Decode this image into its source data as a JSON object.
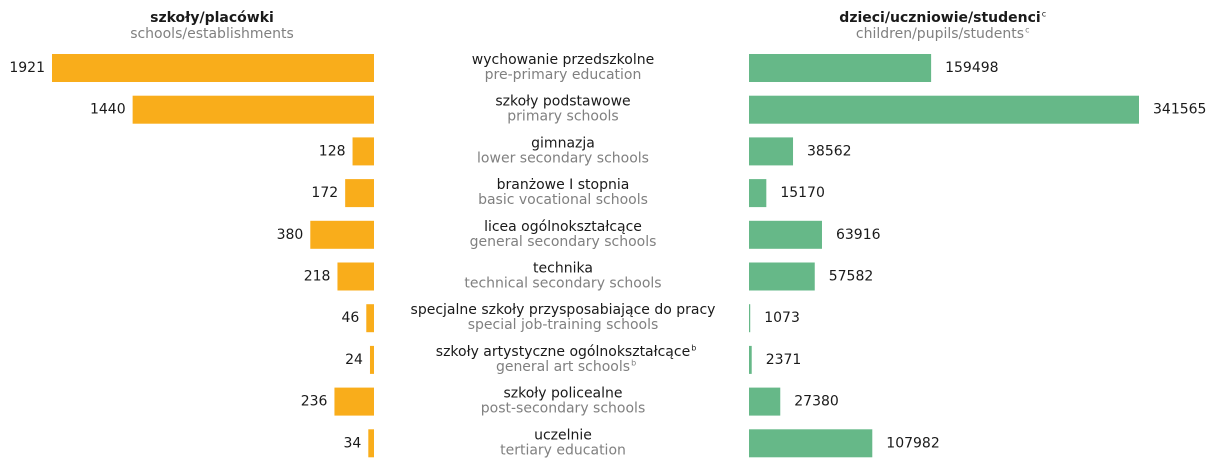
{
  "chart_data": {
    "type": "butterfly",
    "categories": [
      "wychowanie przedszkolne",
      "szkoły podstawowe",
      "gimnazja",
      "branżowe I stopnia",
      "licea ogólnokształcące",
      "technika",
      "specjalne szkoły przysposabiające do pracy",
      "szkoły artystyczne ogólnokształcące",
      "szkoły policealne",
      "uczelnie"
    ],
    "categories_en": [
      "pre-primary education",
      "primary schools",
      "lower secondary schools",
      "basic vocational schools",
      "general secondary schools",
      "technical secondary schools",
      "special job-training schools",
      "general art schools",
      "post-secondary schools",
      "tertiary education"
    ],
    "category_notes": [
      null,
      null,
      null,
      null,
      null,
      null,
      null,
      "b",
      null,
      null
    ],
    "series": [
      {
        "name": "szkoły/placówki",
        "subtitle": "schools/establishments",
        "color": "#f9ad1b",
        "values": [
          1921,
          1440,
          128,
          172,
          380,
          218,
          46,
          24,
          236,
          34
        ]
      },
      {
        "name": "dzieci/uczniowie/studenci",
        "subtitle": "children/pupils/students",
        "note": "c",
        "color": "#66b888",
        "values": [
          159498,
          341565,
          38562,
          15170,
          63916,
          57582,
          1073,
          2371,
          27380,
          107982
        ]
      }
    ]
  }
}
